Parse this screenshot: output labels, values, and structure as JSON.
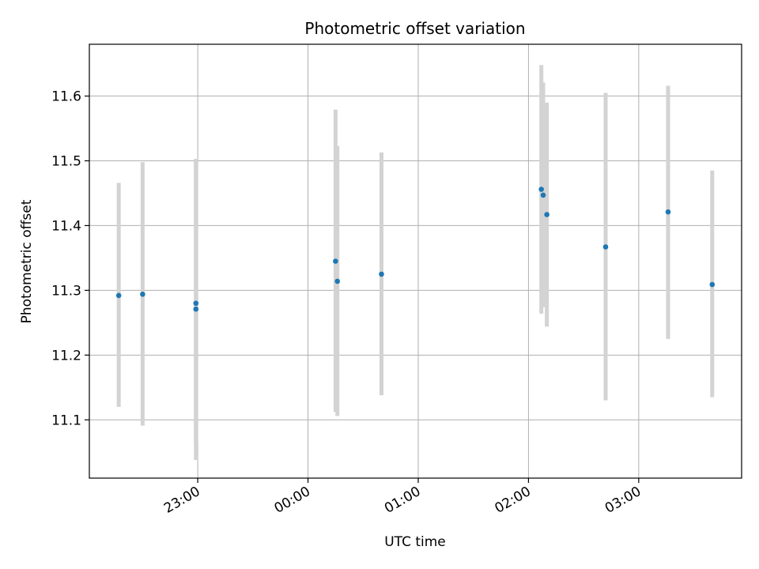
{
  "chart_data": {
    "type": "scatter",
    "title": "Photometric offset variation",
    "xlabel": "UTC time",
    "ylabel": "Photometric offset",
    "x_axis_type": "time",
    "xlim": [
      "22:01",
      "03:56"
    ],
    "ylim": [
      11.01,
      11.68
    ],
    "xticks": [
      "23:00",
      "00:00",
      "01:00",
      "02:00",
      "03:00"
    ],
    "yticks": [
      11.1,
      11.2,
      11.3,
      11.4,
      11.5,
      11.6
    ],
    "grid": true,
    "legend": "none",
    "colors": {
      "marker": "#1f77b4",
      "errorbar": "#d3d3d3",
      "grid": "#b0b0b0",
      "axis": "#000000"
    },
    "points": [
      {
        "x": "22:17",
        "y": 11.292,
        "low": 11.12,
        "high": 11.466
      },
      {
        "x": "22:30",
        "y": 11.294,
        "low": 11.091,
        "high": 11.498
      },
      {
        "x": "22:59",
        "y": 11.271,
        "low": 11.038,
        "high": 11.5
      },
      {
        "x": "22:59",
        "y": 11.28,
        "low": 11.065,
        "high": 11.503
      },
      {
        "x": "00:15",
        "y": 11.345,
        "low": 11.112,
        "high": 11.579
      },
      {
        "x": "00:16",
        "y": 11.314,
        "low": 11.106,
        "high": 11.523
      },
      {
        "x": "00:40",
        "y": 11.325,
        "low": 11.138,
        "high": 11.513
      },
      {
        "x": "02:07",
        "y": 11.456,
        "low": 11.264,
        "high": 11.648
      },
      {
        "x": "02:08",
        "y": 11.447,
        "low": 11.274,
        "high": 11.621
      },
      {
        "x": "02:10",
        "y": 11.417,
        "low": 11.244,
        "high": 11.59
      },
      {
        "x": "02:42",
        "y": 11.367,
        "low": 11.13,
        "high": 11.605
      },
      {
        "x": "03:16",
        "y": 11.421,
        "low": 11.225,
        "high": 11.616
      },
      {
        "x": "03:40",
        "y": 11.309,
        "low": 11.135,
        "high": 11.485
      }
    ]
  }
}
